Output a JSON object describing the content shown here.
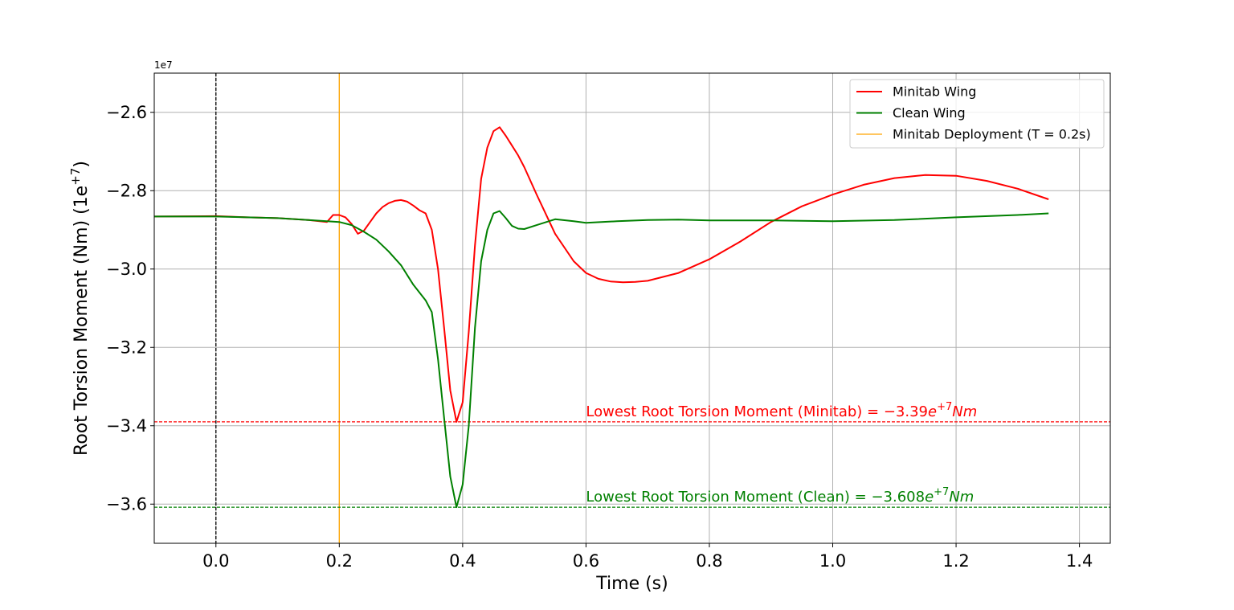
{
  "chart_data": {
    "type": "line",
    "xlabel": "Time (s)",
    "ylabel": "Root Torsion Moment (Nm) (1e",
    "ylabel_sup": "+7",
    "ylabel_close": ")",
    "offset_label": "1e7",
    "xlim": [
      -0.1,
      1.45
    ],
    "ylim": [
      -3.7,
      -2.5
    ],
    "grid": true,
    "legend_placement": "top-right",
    "x_ticks": [
      0.0,
      0.2,
      0.4,
      0.6,
      0.8,
      1.0,
      1.2,
      1.4
    ],
    "x_tick_labels": [
      "0.0",
      "0.2",
      "0.4",
      "0.6",
      "0.8",
      "1.0",
      "1.2",
      "1.4"
    ],
    "y_ticks": [
      -2.6,
      -2.8,
      -3.0,
      -3.2,
      -3.4,
      -3.6
    ],
    "y_tick_labels": [
      "−2.6",
      "−2.8",
      "−3.0",
      "−3.2",
      "−3.4",
      "−3.6"
    ],
    "series": [
      {
        "name": "Minitab Wing",
        "color": "#ff0000",
        "x": [
          -0.1,
          0.0,
          0.05,
          0.1,
          0.15,
          0.18,
          0.19,
          0.2,
          0.21,
          0.22,
          0.23,
          0.24,
          0.25,
          0.26,
          0.27,
          0.28,
          0.29,
          0.3,
          0.31,
          0.32,
          0.33,
          0.34,
          0.35,
          0.36,
          0.37,
          0.38,
          0.39,
          0.4,
          0.41,
          0.42,
          0.43,
          0.44,
          0.45,
          0.46,
          0.47,
          0.48,
          0.49,
          0.5,
          0.52,
          0.55,
          0.58,
          0.6,
          0.62,
          0.64,
          0.66,
          0.68,
          0.7,
          0.75,
          0.8,
          0.85,
          0.9,
          0.95,
          1.0,
          1.05,
          1.1,
          1.15,
          1.2,
          1.25,
          1.3,
          1.35
        ],
        "y": [
          -2.866,
          -2.865,
          -2.868,
          -2.87,
          -2.875,
          -2.88,
          -2.862,
          -2.862,
          -2.868,
          -2.885,
          -2.91,
          -2.902,
          -2.88,
          -2.858,
          -2.842,
          -2.832,
          -2.826,
          -2.824,
          -2.828,
          -2.838,
          -2.85,
          -2.858,
          -2.9,
          -3.0,
          -3.15,
          -3.31,
          -3.39,
          -3.34,
          -3.16,
          -2.94,
          -2.77,
          -2.69,
          -2.648,
          -2.638,
          -2.66,
          -2.685,
          -2.71,
          -2.74,
          -2.81,
          -2.91,
          -2.98,
          -3.01,
          -3.025,
          -3.032,
          -3.034,
          -3.033,
          -3.03,
          -3.01,
          -2.975,
          -2.93,
          -2.88,
          -2.84,
          -2.81,
          -2.785,
          -2.768,
          -2.76,
          -2.762,
          -2.775,
          -2.795,
          -2.822
        ]
      },
      {
        "name": "Clean Wing",
        "color": "#008000",
        "x": [
          -0.1,
          0.0,
          0.05,
          0.1,
          0.15,
          0.2,
          0.22,
          0.24,
          0.26,
          0.28,
          0.3,
          0.32,
          0.34,
          0.35,
          0.36,
          0.37,
          0.38,
          0.39,
          0.4,
          0.41,
          0.42,
          0.43,
          0.44,
          0.45,
          0.46,
          0.47,
          0.48,
          0.49,
          0.5,
          0.52,
          0.55,
          0.58,
          0.6,
          0.65,
          0.7,
          0.75,
          0.8,
          0.9,
          1.0,
          1.1,
          1.2,
          1.3,
          1.35
        ],
        "y": [
          -2.866,
          -2.866,
          -2.868,
          -2.87,
          -2.875,
          -2.88,
          -2.888,
          -2.905,
          -2.925,
          -2.955,
          -2.99,
          -3.04,
          -3.08,
          -3.11,
          -3.23,
          -3.38,
          -3.53,
          -3.608,
          -3.55,
          -3.4,
          -3.15,
          -2.98,
          -2.9,
          -2.858,
          -2.852,
          -2.87,
          -2.89,
          -2.897,
          -2.898,
          -2.888,
          -2.873,
          -2.878,
          -2.882,
          -2.878,
          -2.875,
          -2.874,
          -2.876,
          -2.876,
          -2.878,
          -2.875,
          -2.868,
          -2.862,
          -2.858
        ]
      }
    ],
    "vlines": [
      {
        "x": 0.0,
        "color": "#000000",
        "style": "dashed"
      },
      {
        "x": 0.2,
        "color": "#ffa500",
        "style": "solid",
        "name": "Minitab Deployment (T = 0.2s)"
      }
    ],
    "hlines": [
      {
        "y": -3.39,
        "color": "#ff0000",
        "style": "dashed"
      },
      {
        "y": -3.608,
        "color": "#008000",
        "style": "dashed"
      }
    ],
    "legend": [
      "Minitab Wing",
      "Clean Wing",
      "Minitab Deployment (T = 0.2s)"
    ],
    "annotations": [
      {
        "x": 0.6,
        "y": -3.39,
        "color": "#ff0000",
        "text": "Lowest Root Torsion Moment (Minitab) = −3.39",
        "base": "e",
        "sup": "+7",
        "unit": "Nm"
      },
      {
        "x": 0.6,
        "y": -3.608,
        "color": "#008000",
        "text": "Lowest Root Torsion Moment (Clean) = −3.608",
        "base": "e",
        "sup": "+7",
        "unit": "Nm"
      }
    ]
  }
}
